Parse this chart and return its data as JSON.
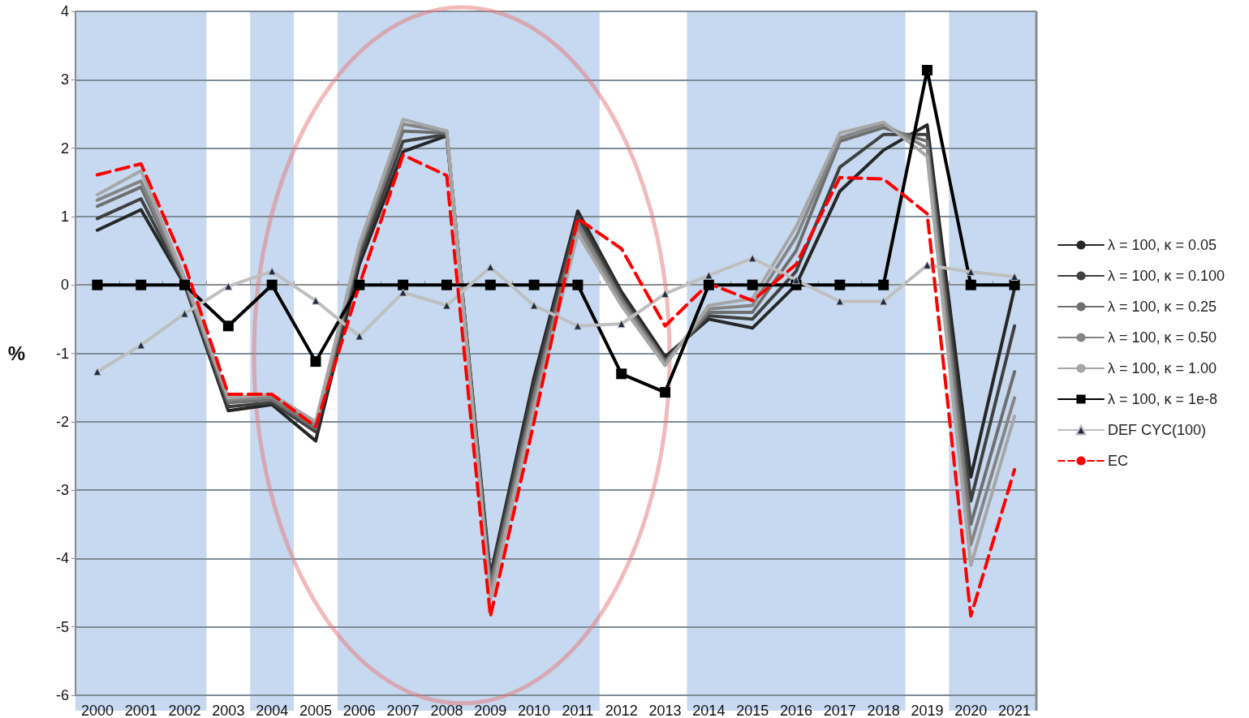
{
  "chart_data": {
    "type": "line",
    "ylabel": "%",
    "categories": [
      "2000",
      "2001",
      "2002",
      "2003",
      "2004",
      "2005",
      "2006",
      "2007",
      "2008",
      "2009",
      "2010",
      "2011",
      "2012",
      "2013",
      "2014",
      "2015",
      "2016",
      "2017",
      "2018",
      "2019",
      "2020",
      "2021"
    ],
    "ylim": [
      -6,
      4
    ],
    "yticks": [
      -6,
      -5,
      -4,
      -3,
      -2,
      -1,
      0,
      1,
      2,
      3,
      4
    ],
    "grid": "y",
    "legend": "right",
    "bands": [
      {
        "axis": "x",
        "from": "2000",
        "to": "2002",
        "color": "#c6d9f0"
      },
      {
        "axis": "x",
        "from": "2004",
        "to": "2004",
        "color": "#c6d9f0"
      },
      {
        "axis": "x",
        "from": "2006",
        "to": "2011",
        "color": "#c6d9f0"
      },
      {
        "axis": "x",
        "from": "2014",
        "to": "2018",
        "color": "#c6d9f0"
      },
      {
        "axis": "x",
        "from": "2020",
        "to": "2021",
        "color": "#c6d9f0"
      }
    ],
    "series": [
      {
        "name": "λ = 100, κ = 0.05",
        "color": "#262626",
        "marker": "none",
        "line_style": "solid",
        "values": [
          0.8,
          1.1,
          0,
          -1.84,
          -1.75,
          -2.28,
          0.3,
          1.95,
          2.18,
          -4.25,
          -1.35,
          1.08,
          -0.1,
          -1.05,
          -0.5,
          -0.63,
          0.0,
          1.37,
          1.97,
          2.34,
          -2.81,
          -0.05
        ]
      },
      {
        "name": "λ = 100, κ = 0.100",
        "color": "#404040",
        "marker": "none",
        "line_style": "solid",
        "values": [
          0.97,
          1.26,
          0.02,
          -1.78,
          -1.72,
          -2.15,
          0.4,
          2.1,
          2.2,
          -4.3,
          -1.45,
          1.0,
          -0.15,
          -1.1,
          -0.45,
          -0.5,
          0.2,
          1.72,
          2.2,
          2.2,
          -3.16,
          -0.6
        ]
      },
      {
        "name": "λ = 100, κ = 0.25",
        "color": "#6e6e6e",
        "marker": "none",
        "line_style": "solid",
        "values": [
          1.15,
          1.43,
          0.05,
          -1.72,
          -1.68,
          -2.1,
          0.5,
          2.25,
          2.22,
          -4.4,
          -1.6,
          0.9,
          -0.2,
          -1.12,
          -0.4,
          -0.4,
          0.5,
          2.1,
          2.3,
          2.1,
          -3.5,
          -1.27
        ]
      },
      {
        "name": "λ = 100, κ = 0.50",
        "color": "#858585",
        "marker": "none",
        "line_style": "solid",
        "values": [
          1.24,
          1.52,
          0.08,
          -1.68,
          -1.64,
          -2.05,
          0.55,
          2.35,
          2.25,
          -4.5,
          -1.7,
          0.85,
          -0.25,
          -1.15,
          -0.35,
          -0.3,
          0.7,
          2.15,
          2.35,
          2.0,
          -3.8,
          -1.65
        ]
      },
      {
        "name": "λ = 100, κ = 1.00",
        "color": "#a6a6a6",
        "marker": "none",
        "line_style": "solid",
        "values": [
          1.32,
          1.67,
          0.1,
          -1.65,
          -1.6,
          -2.0,
          0.6,
          2.42,
          2.25,
          -4.6,
          -1.8,
          0.75,
          -0.3,
          -1.18,
          -0.3,
          -0.2,
          0.85,
          2.22,
          2.38,
          1.88,
          -4.1,
          -1.92
        ]
      },
      {
        "name": "λ = 100, κ = 1e-8",
        "color": "#000000",
        "marker": "square",
        "line_style": "solid",
        "values": [
          0,
          0,
          0,
          -0.6,
          0,
          -1.12,
          0,
          0,
          0,
          0,
          0,
          0,
          -1.3,
          -1.57,
          0,
          0,
          0,
          0,
          0,
          3.14,
          0,
          0
        ]
      },
      {
        "name": "DEF CYC(100)",
        "color": "#bfbfbf",
        "marker": "triangle",
        "line_style": "solid",
        "values": [
          -1.27,
          -0.88,
          -0.42,
          -0.02,
          0.2,
          -0.23,
          -0.75,
          -0.11,
          -0.3,
          0.26,
          -0.3,
          -0.6,
          -0.57,
          -0.13,
          0.14,
          0.39,
          0.07,
          -0.24,
          -0.24,
          0.29,
          0.19,
          0.12
        ]
      },
      {
        "name": "EC",
        "color": "#ff0000",
        "marker": "none",
        "line_style": "dashed",
        "values": [
          1.61,
          1.77,
          0.3,
          -1.6,
          -1.6,
          -2.07,
          0,
          1.9,
          1.6,
          -4.85,
          -2.0,
          0.97,
          0.53,
          -0.6,
          0.02,
          -0.23,
          0.3,
          1.57,
          1.55,
          1.04,
          -4.84,
          -2.7
        ]
      }
    ]
  }
}
